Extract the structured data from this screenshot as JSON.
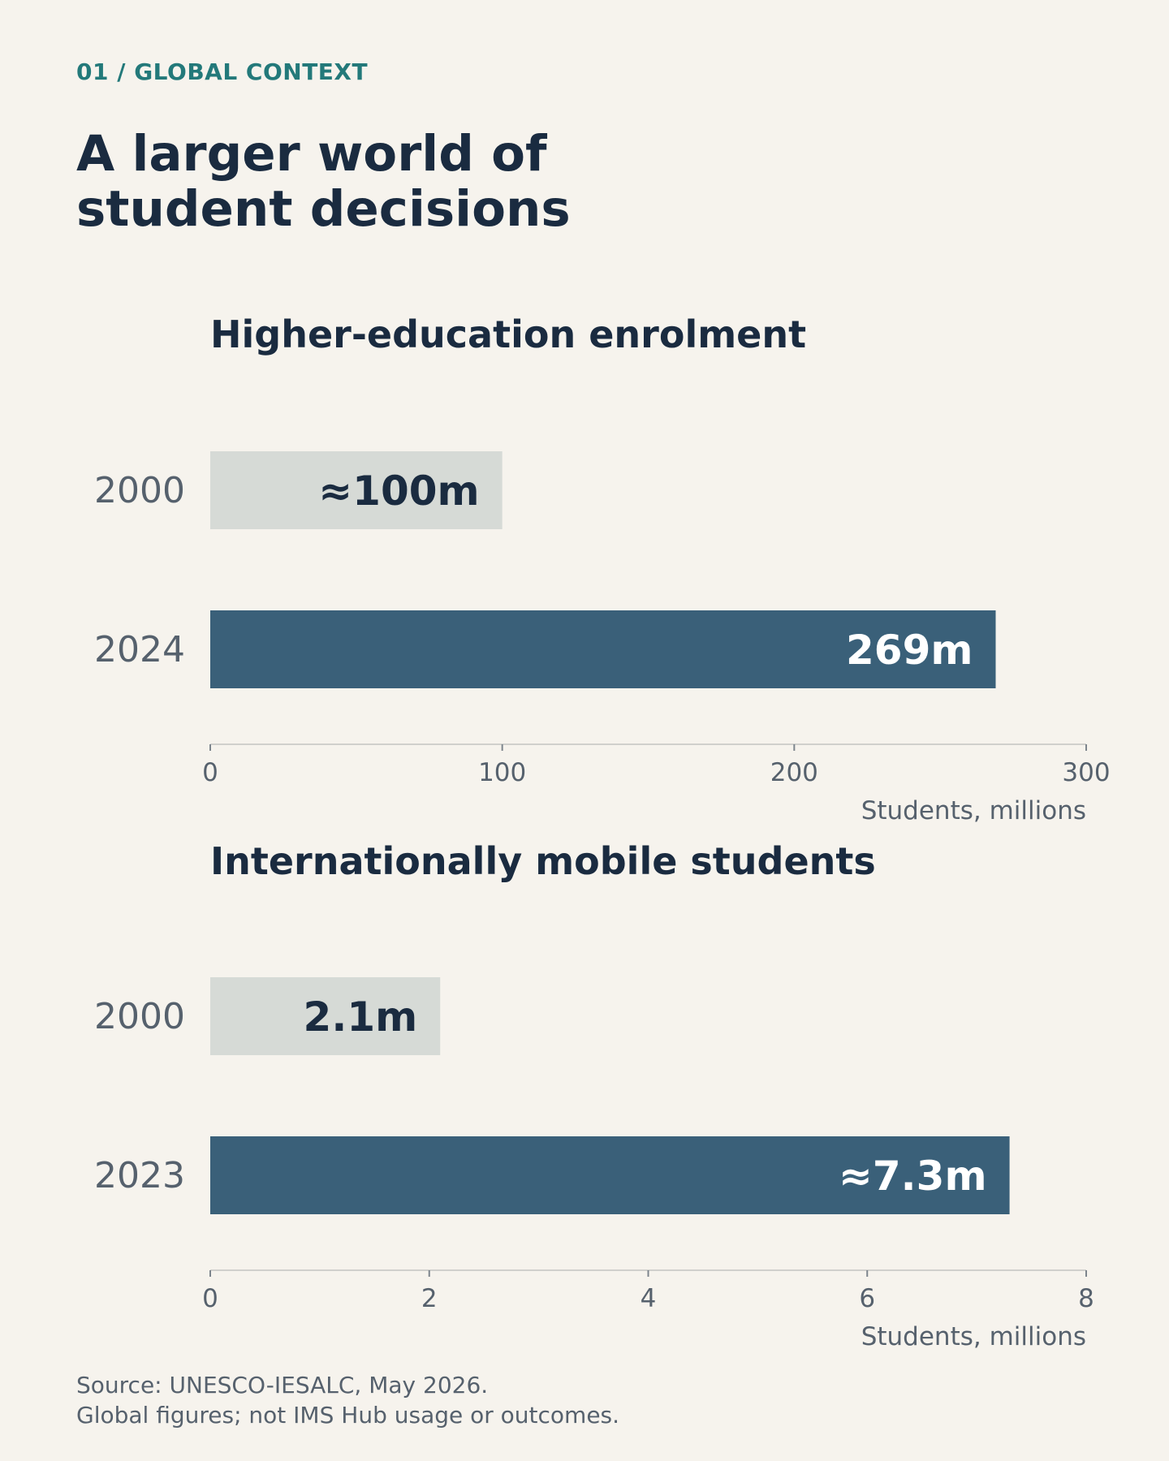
{
  "header": {
    "eyebrow": "01 / GLOBAL CONTEXT",
    "title": "A larger world of\nstudent decisions"
  },
  "chart_data": [
    {
      "type": "bar",
      "orientation": "horizontal",
      "title": "Higher-education enrolment",
      "categories": [
        "2000",
        "2024"
      ],
      "values": [
        100,
        269
      ],
      "value_labels": [
        "≈100m",
        "269m"
      ],
      "bar_colors": [
        "#d6dad6",
        "#3a6079"
      ],
      "label_colors": [
        "#1a2b40",
        "#ffffff"
      ],
      "xlabel": "Students, millions",
      "xlim": [
        0,
        300
      ],
      "xticks": [
        0,
        100,
        200,
        300
      ]
    },
    {
      "type": "bar",
      "orientation": "horizontal",
      "title": "Internationally mobile students",
      "categories": [
        "2000",
        "2023"
      ],
      "values": [
        2.1,
        7.3
      ],
      "value_labels": [
        "2.1m",
        "≈7.3m"
      ],
      "bar_colors": [
        "#d6dad6",
        "#3a6079"
      ],
      "label_colors": [
        "#1a2b40",
        "#ffffff"
      ],
      "xlabel": "Students, millions",
      "xlim": [
        0,
        8
      ],
      "xticks": [
        0,
        2,
        4,
        6,
        8
      ]
    }
  ],
  "footer": {
    "source": "Source: UNESCO-IESALC, May 2026.",
    "note": "Global figures; not IMS Hub usage or outcomes."
  }
}
